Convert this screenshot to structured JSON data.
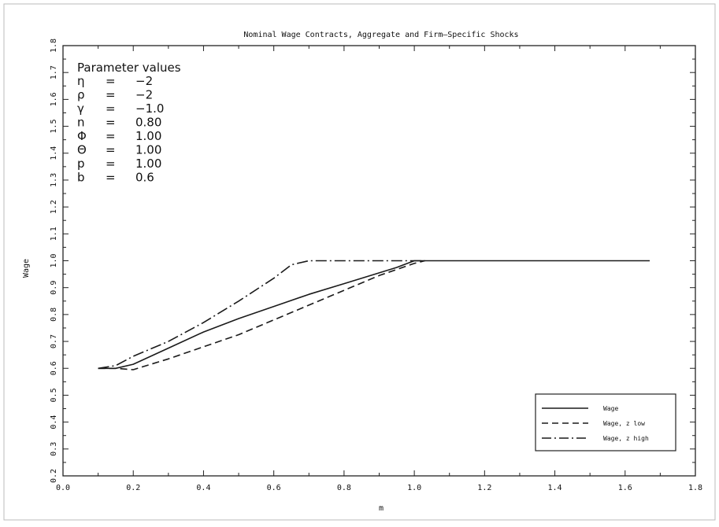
{
  "chart_data": {
    "type": "line",
    "title": "Nominal Wage Contracts, Aggregate and Firm–Specific Shocks",
    "xlabel": "m",
    "ylabel": "Wage",
    "xlim": [
      0.0,
      1.8
    ],
    "ylim": [
      0.2,
      1.8
    ],
    "x_ticks": [
      0.0,
      0.2,
      0.4,
      0.6,
      0.8,
      1.0,
      1.2,
      1.4,
      1.6,
      1.8
    ],
    "x_tick_labels": [
      "0.0",
      "0.2",
      "0.4",
      "0.6",
      "0.8",
      "1.0",
      "1.2",
      "1.4",
      "1.6",
      "1.8"
    ],
    "y_ticks": [
      0.2,
      0.3,
      0.4,
      0.5,
      0.6,
      0.7,
      0.8,
      0.9,
      1.0,
      1.1,
      1.2,
      1.3,
      1.4,
      1.5,
      1.6,
      1.7,
      1.8
    ],
    "y_tick_labels": [
      "0.2",
      "0.3",
      "0.4",
      "0.5",
      "0.6",
      "0.7",
      "0.8",
      "0.9",
      "1.0",
      "1.1",
      "1.2",
      "1.3",
      "1.4",
      "1.5",
      "1.6",
      "1.7",
      "1.8"
    ],
    "grid": false,
    "legend_position": "bottom-right",
    "series": [
      {
        "name": "Wage",
        "style": "solid",
        "x": [
          0.1,
          0.15,
          0.2,
          0.3,
          0.4,
          0.5,
          0.6,
          0.7,
          0.8,
          0.9,
          0.95,
          1.0,
          1.1,
          1.2,
          1.4,
          1.6,
          1.67
        ],
        "y": [
          0.6,
          0.6,
          0.615,
          0.675,
          0.735,
          0.785,
          0.83,
          0.875,
          0.915,
          0.955,
          0.975,
          1.0,
          1.0,
          1.0,
          1.0,
          1.0,
          1.0
        ]
      },
      {
        "name": "Wage, z low",
        "style": "dashed",
        "x": [
          0.1,
          0.15,
          0.2,
          0.3,
          0.4,
          0.5,
          0.6,
          0.7,
          0.8,
          0.9,
          1.0,
          1.03
        ],
        "y": [
          0.6,
          0.6,
          0.595,
          0.635,
          0.68,
          0.725,
          0.78,
          0.835,
          0.89,
          0.945,
          0.99,
          1.0
        ]
      },
      {
        "name": "Wage, z high",
        "style": "dashdot",
        "x": [
          0.1,
          0.15,
          0.2,
          0.3,
          0.4,
          0.5,
          0.6,
          0.65,
          0.7,
          0.8,
          0.9,
          1.0,
          1.03
        ],
        "y": [
          0.6,
          0.61,
          0.645,
          0.7,
          0.77,
          0.85,
          0.935,
          0.985,
          1.0,
          1.0,
          1.0,
          1.0,
          1.0
        ]
      }
    ]
  },
  "parameters": {
    "heading": "Parameter values",
    "lines": [
      {
        "symbol": "η",
        "eq": "=",
        "value": "−2"
      },
      {
        "symbol": "ρ",
        "eq": "=",
        "value": "−2"
      },
      {
        "symbol": "γ",
        "eq": "=",
        "value": "−1.0"
      },
      {
        "symbol": "n",
        "eq": "=",
        "value": "0.80"
      },
      {
        "symbol": "Φ",
        "eq": "=",
        "value": "1.00"
      },
      {
        "symbol": "Θ",
        "eq": "=",
        "value": "1.00"
      },
      {
        "symbol": "p",
        "eq": "=",
        "value": "1.00"
      },
      {
        "symbol": "b",
        "eq": "=",
        "value": "0.6"
      }
    ]
  },
  "colors": {
    "line": "#1a1a1a",
    "frame": "#222222",
    "background": "#ffffff"
  }
}
